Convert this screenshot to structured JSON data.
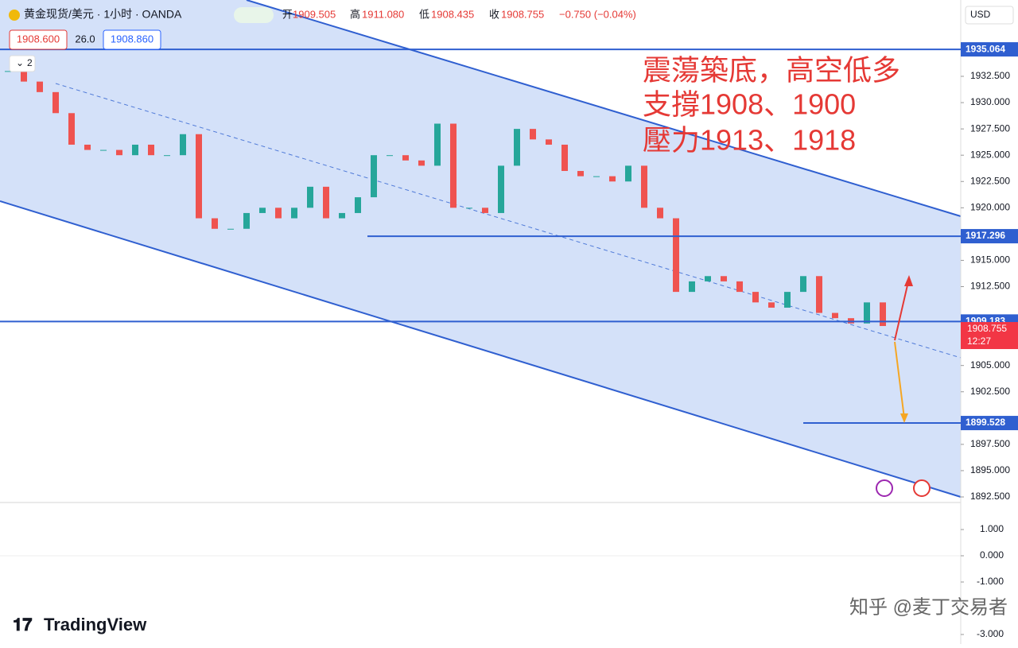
{
  "header": {
    "symbol": "黄金现货/美元 · 1小时 · OANDA",
    "open_label": "开",
    "open": "1909.505",
    "high_label": "高",
    "high": "1911.080",
    "low_label": "低",
    "low": "1908.435",
    "close_label": "收",
    "close": "1908.755",
    "change": "−0.750 (−0.04%)",
    "bid": "1908.600",
    "spread": "26.0",
    "ask": "1908.860",
    "indicators_count": "2"
  },
  "price_axis": {
    "currency": "USD",
    "ticks": [
      {
        "value": 1932.5,
        "label": "1932.500"
      },
      {
        "value": 1930,
        "label": "1930.000"
      },
      {
        "value": 1927.5,
        "label": "1927.500"
      },
      {
        "value": 1925,
        "label": "1925.000"
      },
      {
        "value": 1922.5,
        "label": "1922.500"
      },
      {
        "value": 1920,
        "label": "1920.000"
      },
      {
        "value": 1915,
        "label": "1915.000"
      },
      {
        "value": 1912.5,
        "label": "1912.500"
      },
      {
        "value": 1905,
        "label": "1905.000"
      },
      {
        "value": 1902.5,
        "label": "1902.500"
      },
      {
        "value": 1897.5,
        "label": "1897.500"
      },
      {
        "value": 1895,
        "label": "1895.000"
      },
      {
        "value": 1892.5,
        "label": "1892.500"
      }
    ]
  },
  "levels": [
    1935.064,
    1917.296,
    1909.183,
    1899.528
  ],
  "current_price": {
    "value": 1908.755,
    "countdown": "12:27"
  },
  "candles": {
    "closes": [
      1933,
      1932,
      1931,
      1929,
      1926,
      1925.5,
      1925.5,
      1925,
      1926,
      1925,
      1925,
      1927,
      1919,
      1918,
      1918,
      1919.5,
      1920,
      1919,
      1920,
      1922,
      1919,
      1919.5,
      1921,
      1925,
      1925,
      1924.5,
      1924,
      1928,
      1920,
      1920,
      1919.5,
      1924,
      1927.5,
      1926.5,
      1926,
      1923.5,
      1923,
      1923,
      1922.5,
      1924,
      1920,
      1919,
      1912,
      1913,
      1913.5,
      1913,
      1912,
      1911,
      1910.5,
      1912,
      1913.5,
      1910,
      1909.5,
      1909,
      1911,
      1908.755
    ]
  },
  "annotation": [
    "震蕩築底，高空低多",
    "支撐1908、1900",
    "壓力1913、1918"
  ],
  "macd_axis": {
    "ticks": [
      {
        "value": 1,
        "label": "1.000"
      },
      {
        "value": 0,
        "label": "0.000"
      },
      {
        "value": -1,
        "label": "-1.000"
      },
      {
        "value": -3,
        "label": "-3.000"
      }
    ]
  },
  "watermark": {
    "brand": "TradingView",
    "credit": "知乎 @麦丁交易者"
  }
}
